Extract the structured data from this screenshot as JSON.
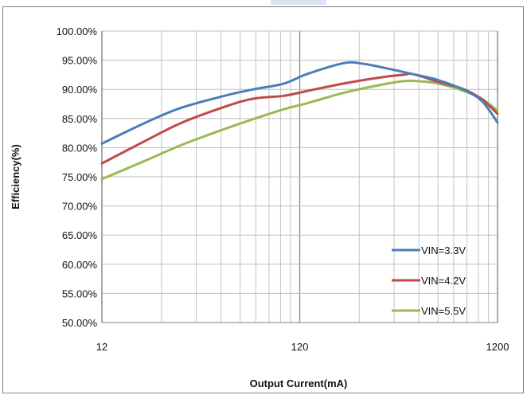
{
  "chart_data": {
    "type": "line",
    "xlabel": "Output Current(mA)",
    "ylabel": "Efficiency(%)",
    "x_scale": "log",
    "xlim": [
      12,
      1200
    ],
    "ylim": [
      50,
      100
    ],
    "x_ticks": [
      {
        "value": 12,
        "label": "12"
      },
      {
        "value": 120,
        "label": "120"
      },
      {
        "value": 1200,
        "label": "1200"
      }
    ],
    "y_ticks": [
      {
        "value": 100,
        "label": "100.00%"
      },
      {
        "value": 95,
        "label": "95.00%"
      },
      {
        "value": 90,
        "label": "90.00%"
      },
      {
        "value": 85,
        "label": "85.00%"
      },
      {
        "value": 80,
        "label": "80.00%"
      },
      {
        "value": 75,
        "label": "75.00%"
      },
      {
        "value": 70,
        "label": "70.00%"
      },
      {
        "value": 65,
        "label": "65.00%"
      },
      {
        "value": 60,
        "label": "60.00%"
      },
      {
        "value": 55,
        "label": "55.00%"
      },
      {
        "value": 50,
        "label": "50.00%"
      }
    ],
    "grid": true,
    "legend_position": "bottom-right",
    "series": [
      {
        "name": "VIN=3.3V",
        "color": "#4a7ebb",
        "points": [
          [
            12,
            80.7
          ],
          [
            20,
            84.3
          ],
          [
            30,
            86.8
          ],
          [
            50,
            88.9
          ],
          [
            70,
            90.0
          ],
          [
            100,
            91.0
          ],
          [
            130,
            92.6
          ],
          [
            200,
            94.5
          ],
          [
            250,
            94.4
          ],
          [
            330,
            93.6
          ],
          [
            450,
            92.6
          ],
          [
            600,
            91.6
          ],
          [
            800,
            90.0
          ],
          [
            1000,
            88.0
          ],
          [
            1200,
            84.3
          ]
        ]
      },
      {
        "name": "VIN=4.2V",
        "color": "#be4b48",
        "points": [
          [
            12,
            77.3
          ],
          [
            20,
            81.2
          ],
          [
            30,
            84.2
          ],
          [
            50,
            87.0
          ],
          [
            70,
            88.4
          ],
          [
            100,
            88.9
          ],
          [
            130,
            89.7
          ],
          [
            200,
            91.0
          ],
          [
            300,
            92.0
          ],
          [
            400,
            92.5
          ],
          [
            450,
            92.6
          ],
          [
            600,
            91.3
          ],
          [
            800,
            90.1
          ],
          [
            1000,
            88.3
          ],
          [
            1200,
            85.8
          ]
        ]
      },
      {
        "name": "VIN=5.5V",
        "color": "#98b954",
        "points": [
          [
            12,
            74.6
          ],
          [
            20,
            77.8
          ],
          [
            30,
            80.4
          ],
          [
            50,
            83.2
          ],
          [
            70,
            84.9
          ],
          [
            100,
            86.6
          ],
          [
            130,
            87.6
          ],
          [
            200,
            89.4
          ],
          [
            300,
            90.7
          ],
          [
            400,
            91.4
          ],
          [
            480,
            91.4
          ],
          [
            600,
            91.0
          ],
          [
            800,
            89.8
          ],
          [
            1000,
            88.4
          ],
          [
            1200,
            86.3
          ]
        ]
      }
    ]
  }
}
